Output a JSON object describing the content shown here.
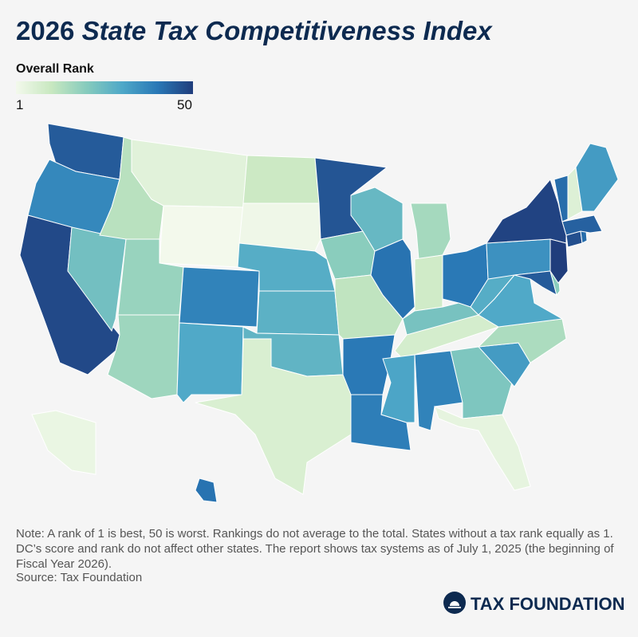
{
  "header": {
    "title_year": "2026",
    "title_name": "State Tax Competitiveness Index"
  },
  "map": {
    "legend": {
      "title": "Overall Rank",
      "min": 1,
      "max": 50
    },
    "colors": [
      "#f3f9ec",
      "#c8e8c0",
      "#86cbbd",
      "#4ea8c8",
      "#2978b6",
      "#203d7c"
    ],
    "ranks": [
      45,
      37,
      48,
      24,
      13,
      5,
      1,
      18,
      17,
      38,
      30,
      10,
      2,
      29,
      28,
      27,
      7,
      46,
      20,
      12,
      40,
      39,
      26,
      41,
      16,
      9,
      40,
      23,
      8,
      31,
      38,
      22,
      4,
      33,
      15,
      30,
      29,
      35,
      49,
      45,
      20,
      50,
      47,
      42,
      44,
      42,
      6,
      33,
      3,
      41
    ]
  },
  "footer": {
    "note": "Note: A rank of 1 is best, 50 is worst. Rankings do not average to the total. States without a tax rank equally as 1. DC’s score and rank do not affect other states. The report shows tax systems as of July 1, 2025 (the beginning of Fiscal Year 2026).",
    "source": "Source: Tax Foundation",
    "logo": "TAX FOUNDATION"
  }
}
